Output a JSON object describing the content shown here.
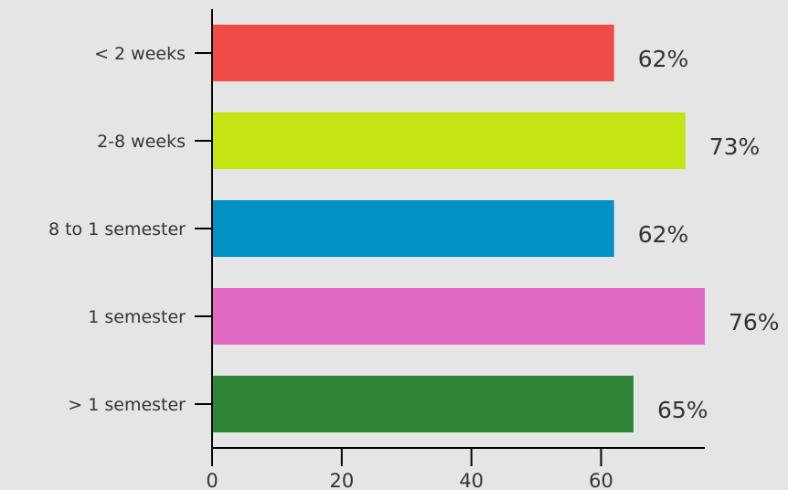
{
  "chart_data": {
    "type": "bar",
    "orientation": "horizontal",
    "categories": [
      "< 2 weeks",
      "2-8 weeks",
      "8 to 1 semester",
      "1 semester",
      "> 1 semester"
    ],
    "values": [
      62,
      73,
      62,
      76,
      65
    ],
    "value_labels": [
      "62%",
      "73%",
      "62%",
      "76%",
      "65%"
    ],
    "colors": [
      "#ef4c47",
      "#c6e313",
      "#0191c4",
      "#e06ac3",
      "#2d8535"
    ],
    "x_ticks": [
      0,
      20,
      40,
      60
    ],
    "x_tick_labels": [
      "0",
      "20",
      "40",
      "60"
    ],
    "xlim": [
      0,
      76
    ],
    "grid": false,
    "title": "",
    "xlabel": "",
    "ylabel": ""
  }
}
